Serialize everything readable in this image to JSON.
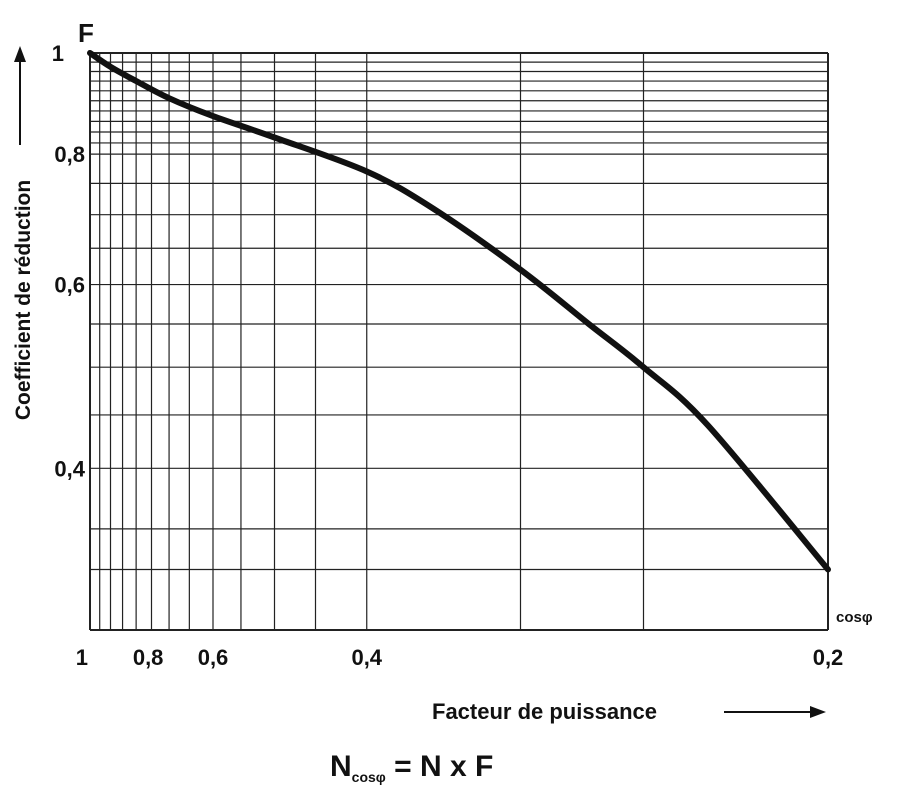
{
  "chart_data": {
    "type": "line",
    "title": "",
    "y_axis_symbol": "F",
    "ylabel": "Coefficient de réduction",
    "xlabel": "Facteur de puissance",
    "x_axis_symbol": "cosφ",
    "x_scale": "reciprocal",
    "y_scale": "log",
    "xlim": [
      1,
      0.2
    ],
    "ylim": [
      0.28,
      1
    ],
    "x_ticks": [
      {
        "value": 1,
        "label": "1"
      },
      {
        "value": 0.8,
        "label": "0,8"
      },
      {
        "value": 0.6,
        "label": "0,6"
      },
      {
        "value": 0.4,
        "label": "0,4"
      },
      {
        "value": 0.2,
        "label": "0,2"
      }
    ],
    "y_ticks": [
      {
        "value": 1,
        "label": "1"
      },
      {
        "value": 0.8,
        "label": "0,8"
      },
      {
        "value": 0.6,
        "label": "0,6"
      },
      {
        "value": 0.4,
        "label": "0,4"
      }
    ],
    "x_gridlines": [
      1,
      0.95,
      0.9,
      0.85,
      0.8,
      0.75,
      0.7,
      0.65,
      0.6,
      0.55,
      0.5,
      0.45,
      0.4,
      0.3,
      0.25,
      0.2
    ],
    "y_gridlines": [
      1,
      0.98,
      0.96,
      0.94,
      0.92,
      0.9,
      0.88,
      0.86,
      0.84,
      0.82,
      0.8,
      0.75,
      0.7,
      0.65,
      0.6,
      0.55,
      0.5,
      0.45,
      0.4,
      0.35,
      0.32
    ],
    "grid": true,
    "series": [
      {
        "name": "",
        "x": [
          1,
          0.9,
          0.8,
          0.7,
          0.6,
          0.5,
          0.4,
          0.35,
          0.3,
          0.27,
          0.25,
          0.23,
          0.2
        ],
        "y": [
          1,
          0.97,
          0.94,
          0.905,
          0.87,
          0.83,
          0.77,
          0.71,
          0.62,
          0.55,
          0.5,
          0.44,
          0.32
        ]
      }
    ]
  },
  "formula": {
    "main": "N",
    "subscript": "cosφ",
    "rest": " = N x F"
  }
}
